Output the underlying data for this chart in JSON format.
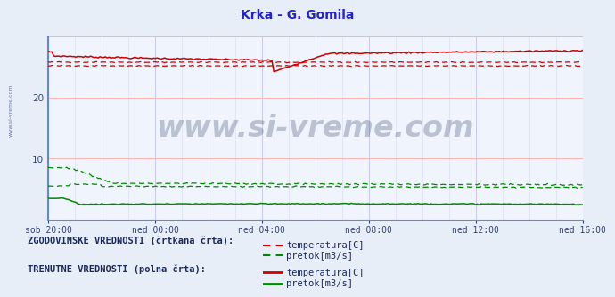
{
  "title": "Krka - G. Gomila",
  "title_color": "#2222cc",
  "bg_color": "#e8eef8",
  "plot_bg_color": "#f0f4fc",
  "grid_color_h": "#ffb0b0",
  "grid_color_v": "#c8c8e0",
  "ylim": [
    0,
    30
  ],
  "xtick_labels": [
    "sob 20:00",
    "ned 00:00",
    "ned 04:00",
    "ned 08:00",
    "ned 12:00",
    "ned 16:00"
  ],
  "n_points": 290,
  "red_color": "#cc0000",
  "green_color": "#008800",
  "blue_axis_color": "#6688cc",
  "watermark_text_color": "#1a2a5a",
  "legend_text_color": "#1a2a5a",
  "tick_color": "#334477",
  "legend_label1": "ZGODOVINSKE VREDNOSTI (črtkana črta):",
  "legend_label2": "TRENUTNE VREDNOSTI (polna črta):",
  "temp_label": "temperatura[C]",
  "pretok_label": "pretok[m3/s]"
}
